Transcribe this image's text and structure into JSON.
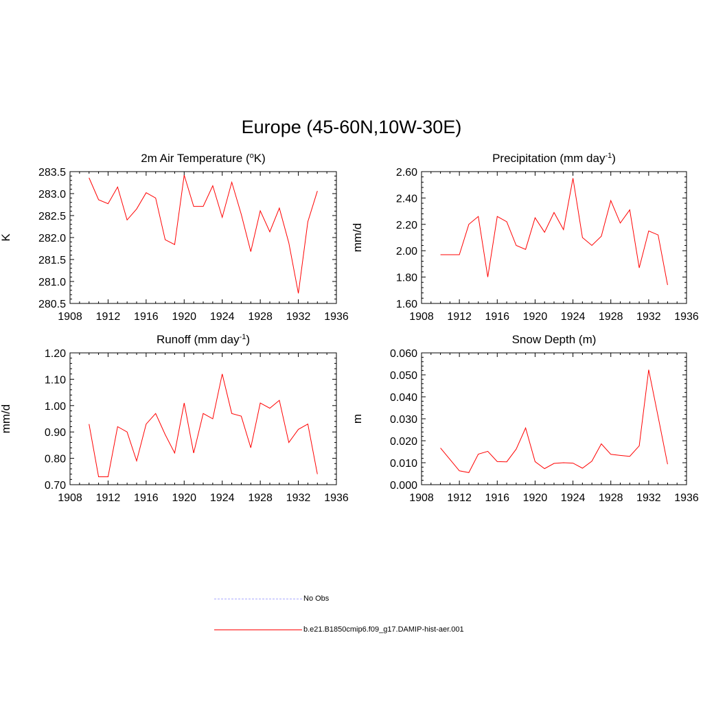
{
  "title": "Europe (45-60N,10W-30E)",
  "colors": {
    "model": "#ff0000",
    "obs": "#aaaaff",
    "axis": "#000000"
  },
  "chart_data": [
    {
      "type": "line",
      "title": "2m Air Temperature (",
      "title_sup": "o",
      "title_tail": "K)",
      "ylabel": "K",
      "xlim": [
        1908,
        1936
      ],
      "ylim": [
        280.5,
        283.5
      ],
      "x_ticks": [
        1908,
        1912,
        1916,
        1920,
        1924,
        1928,
        1932,
        1936
      ],
      "x_tick_labels": [
        "1908",
        "1912",
        "1916",
        "1920",
        "1924",
        "1928",
        "1932",
        "1936"
      ],
      "y_ticks": [
        280.5,
        281.0,
        281.5,
        282.0,
        282.5,
        283.0,
        283.5
      ],
      "y_tick_labels": [
        "280.5",
        "281.0",
        "281.5",
        "282.0",
        "282.5",
        "283.0",
        "283.5"
      ],
      "x": [
        1910,
        1911,
        1912,
        1913,
        1914,
        1915,
        1916,
        1917,
        1918,
        1919,
        1920,
        1921,
        1922,
        1923,
        1924,
        1925,
        1926,
        1927,
        1928,
        1929,
        1930,
        1931,
        1932,
        1933,
        1934
      ],
      "series": [
        {
          "name": "b.e21.B1850cmip6.f09_g17.DAMIP-hist-aer.001",
          "values": [
            283.36,
            282.86,
            282.77,
            283.15,
            282.4,
            282.65,
            283.02,
            282.9,
            281.95,
            281.84,
            283.42,
            282.71,
            282.71,
            283.18,
            282.46,
            283.26,
            282.53,
            281.68,
            282.61,
            282.13,
            282.67,
            281.88,
            280.73,
            282.36,
            283.06
          ]
        }
      ]
    },
    {
      "type": "line",
      "title": "Precipitation (mm day",
      "title_sup": "-1",
      "title_tail": ")",
      "ylabel": "mm/d",
      "xlim": [
        1908,
        1936
      ],
      "ylim": [
        1.6,
        2.6
      ],
      "x_ticks": [
        1908,
        1912,
        1916,
        1920,
        1924,
        1928,
        1932,
        1936
      ],
      "x_tick_labels": [
        "1908",
        "1912",
        "1916",
        "1920",
        "1924",
        "1928",
        "1932",
        "1936"
      ],
      "y_ticks": [
        1.6,
        1.8,
        2.0,
        2.2,
        2.4,
        2.6
      ],
      "y_tick_labels": [
        "1.60",
        "1.80",
        "2.00",
        "2.20",
        "2.40",
        "2.60"
      ],
      "x": [
        1910,
        1911,
        1912,
        1913,
        1914,
        1915,
        1916,
        1917,
        1918,
        1919,
        1920,
        1921,
        1922,
        1923,
        1924,
        1925,
        1926,
        1927,
        1928,
        1929,
        1930,
        1931,
        1932,
        1933,
        1934
      ],
      "series": [
        {
          "name": "b.e21.B1850cmip6.f09_g17.DAMIP-hist-aer.001",
          "values": [
            1.97,
            1.97,
            1.97,
            2.2,
            2.26,
            1.8,
            2.26,
            2.22,
            2.04,
            2.01,
            2.25,
            2.14,
            2.29,
            2.16,
            2.55,
            2.1,
            2.04,
            2.11,
            2.38,
            2.21,
            2.31,
            1.87,
            2.15,
            2.12,
            1.74
          ]
        }
      ]
    },
    {
      "type": "line",
      "title": "Runoff (mm day",
      "title_sup": "-1",
      "title_tail": ")",
      "ylabel": "mm/d",
      "xlim": [
        1908,
        1936
      ],
      "ylim": [
        0.7,
        1.2
      ],
      "x_ticks": [
        1908,
        1912,
        1916,
        1920,
        1924,
        1928,
        1932,
        1936
      ],
      "x_tick_labels": [
        "1908",
        "1912",
        "1916",
        "1920",
        "1924",
        "1928",
        "1932",
        "1936"
      ],
      "y_ticks": [
        0.7,
        0.8,
        0.9,
        1.0,
        1.1,
        1.2
      ],
      "y_tick_labels": [
        "0.70",
        "0.80",
        "0.90",
        "1.00",
        "1.10",
        "1.20"
      ],
      "x": [
        1910,
        1911,
        1912,
        1913,
        1914,
        1915,
        1916,
        1917,
        1918,
        1919,
        1920,
        1921,
        1922,
        1923,
        1924,
        1925,
        1926,
        1927,
        1928,
        1929,
        1930,
        1931,
        1932,
        1933,
        1934
      ],
      "series": [
        {
          "name": "b.e21.B1850cmip6.f09_g17.DAMIP-hist-aer.001",
          "values": [
            0.93,
            0.73,
            0.73,
            0.92,
            0.9,
            0.79,
            0.93,
            0.97,
            0.89,
            0.82,
            1.01,
            0.82,
            0.97,
            0.95,
            1.12,
            0.97,
            0.96,
            0.84,
            1.01,
            0.99,
            1.02,
            0.86,
            0.91,
            0.93,
            0.74
          ]
        }
      ]
    },
    {
      "type": "line",
      "title": "Snow Depth (m)",
      "title_sup": "",
      "title_tail": "",
      "ylabel": "m",
      "xlim": [
        1908,
        1936
      ],
      "ylim": [
        0.0,
        0.06
      ],
      "x_ticks": [
        1908,
        1912,
        1916,
        1920,
        1924,
        1928,
        1932,
        1936
      ],
      "x_tick_labels": [
        "1908",
        "1912",
        "1916",
        "1920",
        "1924",
        "1928",
        "1932",
        "1936"
      ],
      "y_ticks": [
        0.0,
        0.01,
        0.02,
        0.03,
        0.04,
        0.05,
        0.06
      ],
      "y_tick_labels": [
        "0.000",
        "0.010",
        "0.020",
        "0.030",
        "0.040",
        "0.050",
        "0.060"
      ],
      "x": [
        1910,
        1911,
        1912,
        1913,
        1914,
        1915,
        1916,
        1917,
        1918,
        1919,
        1920,
        1921,
        1922,
        1923,
        1924,
        1925,
        1926,
        1927,
        1928,
        1929,
        1930,
        1931,
        1932,
        1933,
        1934
      ],
      "series": [
        {
          "name": "b.e21.B1850cmip6.f09_g17.DAMIP-hist-aer.001",
          "values": [
            0.0167,
            0.0115,
            0.0063,
            0.0055,
            0.0139,
            0.0152,
            0.0105,
            0.0104,
            0.0162,
            0.0258,
            0.0105,
            0.0073,
            0.0097,
            0.01,
            0.0098,
            0.0075,
            0.0107,
            0.0186,
            0.0138,
            0.0133,
            0.0129,
            0.0177,
            0.0523,
            0.031,
            0.0093
          ]
        }
      ]
    }
  ],
  "legend": {
    "obs_label": "No Obs",
    "model_label": "b.e21.B1850cmip6.f09_g17.DAMIP-hist-aer.001"
  }
}
